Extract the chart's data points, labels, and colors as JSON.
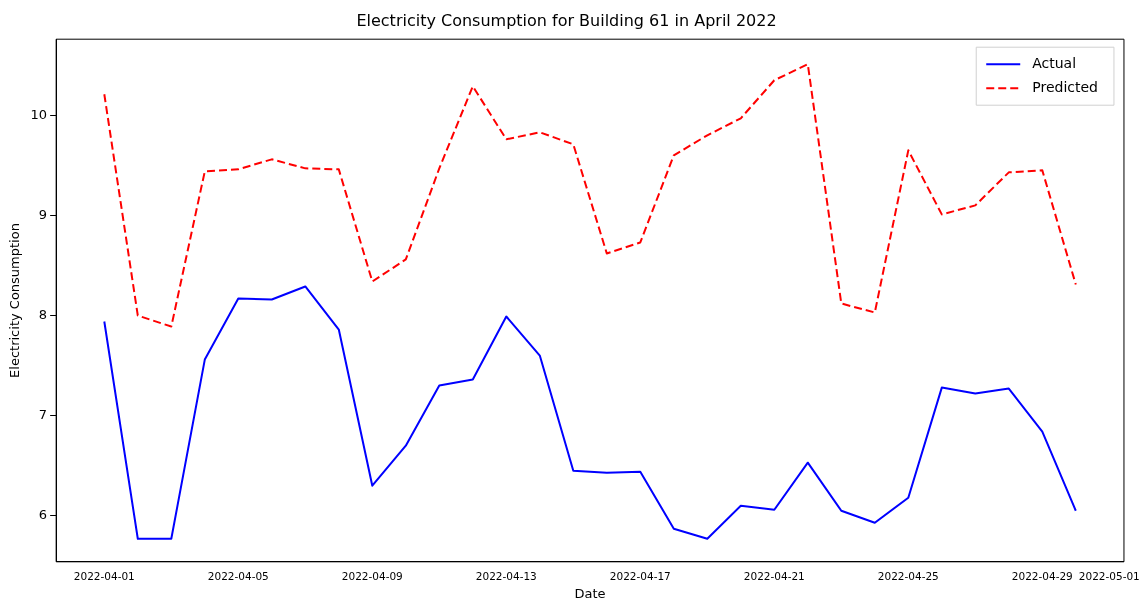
{
  "chart_data": {
    "type": "line",
    "title": "Electricity Consumption for Building 61 in April 2022",
    "xlabel": "Date",
    "ylabel": "Electricity Consumption",
    "x": [
      "2022-04-01",
      "2022-04-02",
      "2022-04-03",
      "2022-04-04",
      "2022-04-05",
      "2022-04-06",
      "2022-04-07",
      "2022-04-08",
      "2022-04-09",
      "2022-04-10",
      "2022-04-11",
      "2022-04-12",
      "2022-04-13",
      "2022-04-14",
      "2022-04-15",
      "2022-04-16",
      "2022-04-17",
      "2022-04-18",
      "2022-04-19",
      "2022-04-20",
      "2022-04-21",
      "2022-04-22",
      "2022-04-23",
      "2022-04-24",
      "2022-04-25",
      "2022-04-26",
      "2022-04-27",
      "2022-04-28",
      "2022-04-29",
      "2022-04-30"
    ],
    "series": [
      {
        "name": "Actual",
        "color": "#0000ff",
        "line_style": "solid",
        "values": [
          7.94,
          5.77,
          5.77,
          7.56,
          8.17,
          8.16,
          8.29,
          7.86,
          6.3,
          6.7,
          7.3,
          7.36,
          7.99,
          7.6,
          6.45,
          6.43,
          6.44,
          5.87,
          5.77,
          6.1,
          6.06,
          6.53,
          6.05,
          5.93,
          6.18,
          7.28,
          7.22,
          7.27,
          6.84,
          6.05
        ]
      },
      {
        "name": "Predicted",
        "color": "#ff0000",
        "line_style": "dashed",
        "values": [
          10.21,
          8.0,
          7.89,
          9.44,
          9.46,
          9.56,
          9.47,
          9.46,
          8.34,
          8.56,
          9.47,
          10.29,
          9.76,
          9.83,
          9.71,
          8.62,
          8.73,
          9.6,
          9.8,
          9.97,
          10.35,
          10.51,
          8.12,
          8.03,
          9.65,
          9.01,
          9.1,
          9.43,
          9.45,
          8.31
        ]
      }
    ],
    "xlim": [
      "2022-03-30T13:30",
      "2022-05-01T10:30"
    ],
    "xticks": [
      "2022-04-01",
      "2022-04-05",
      "2022-04-09",
      "2022-04-13",
      "2022-04-17",
      "2022-04-21",
      "2022-04-25",
      "2022-04-29",
      "2022-05-01"
    ],
    "ylim": [
      5.54,
      10.76
    ],
    "yticks": [
      6,
      7,
      8,
      9,
      10
    ],
    "grid": false,
    "legend": "top right",
    "marker": "none"
  }
}
